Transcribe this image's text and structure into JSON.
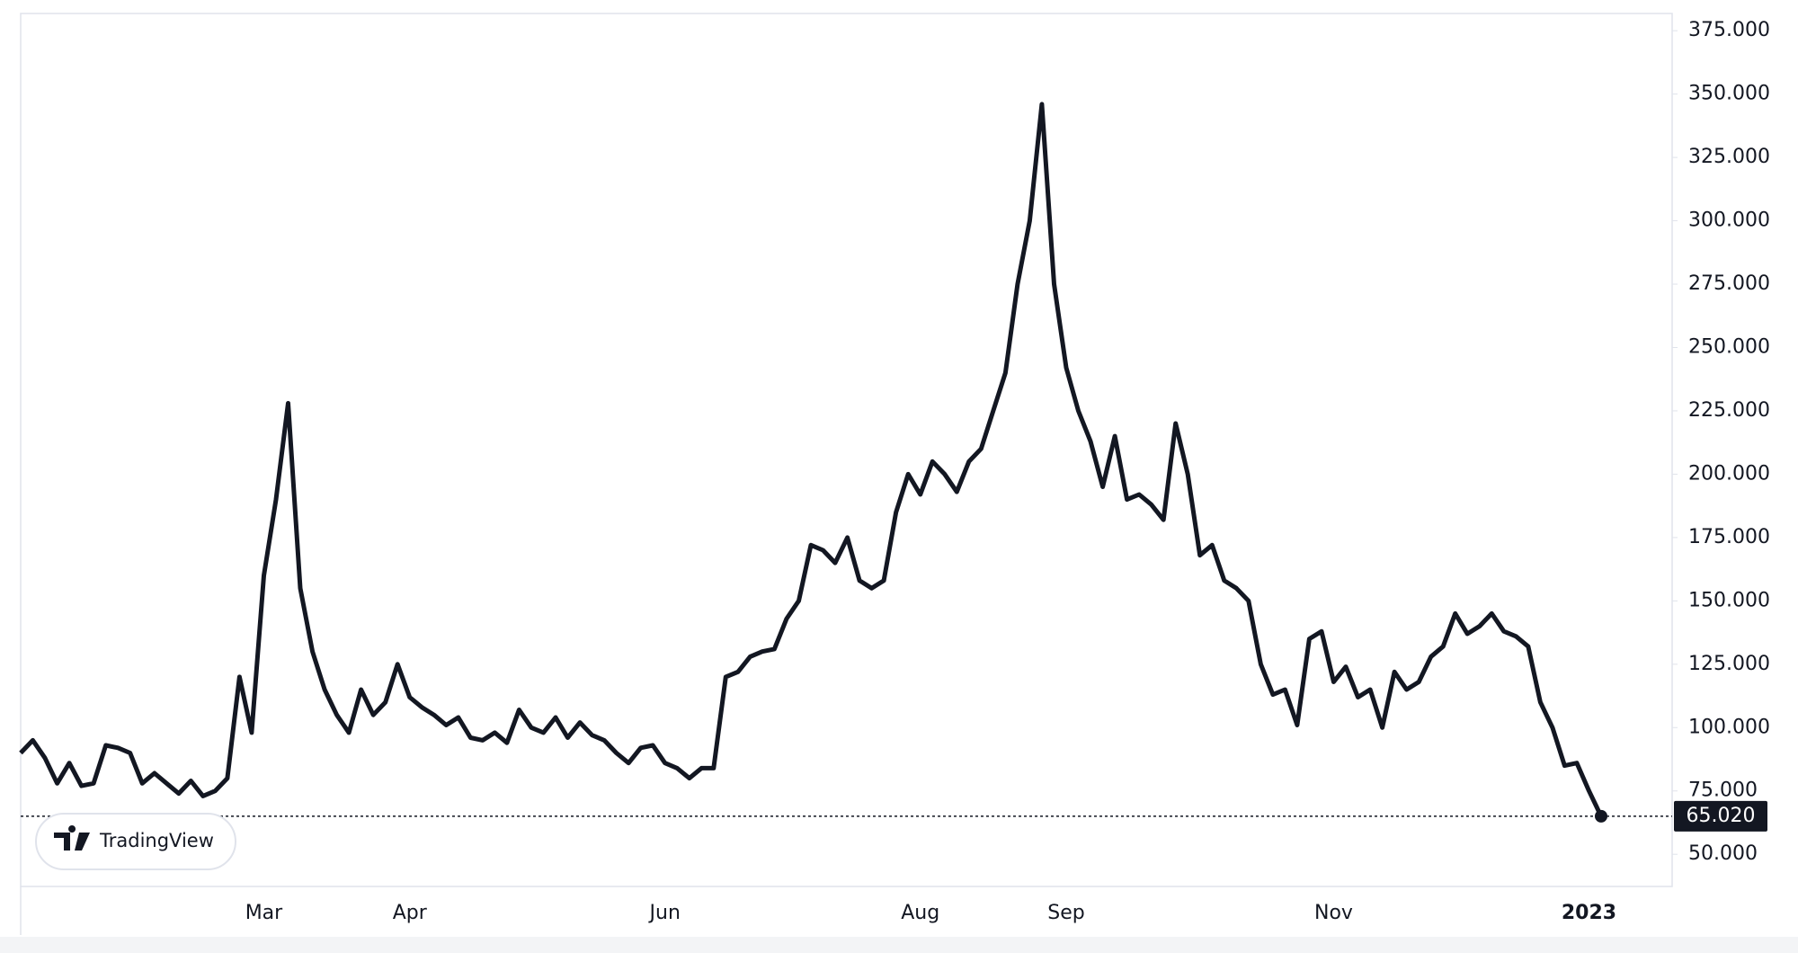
{
  "chart_data": {
    "type": "line",
    "categories": [
      null,
      null,
      null,
      null,
      null,
      null,
      null,
      null,
      null,
      null,
      null,
      null,
      null,
      null,
      null,
      null,
      null,
      null,
      null,
      null,
      "Mar",
      null,
      null,
      null,
      null,
      null,
      null,
      null,
      null,
      null,
      null,
      null,
      "Apr",
      null,
      null,
      null,
      null,
      null,
      null,
      null,
      null,
      null,
      null,
      null,
      null,
      null,
      null,
      null,
      null,
      null,
      null,
      null,
      null,
      "Jun",
      null,
      null,
      null,
      null,
      null,
      null,
      null,
      null,
      null,
      null,
      null,
      null,
      null,
      null,
      null,
      null,
      null,
      null,
      null,
      null,
      "Aug",
      null,
      null,
      null,
      null,
      null,
      null,
      null,
      null,
      null,
      null,
      null,
      "Sep",
      null,
      null,
      null,
      null,
      null,
      null,
      null,
      null,
      null,
      null,
      null,
      null,
      null,
      null,
      null,
      null,
      null,
      null,
      null,
      null,
      null,
      "Nov",
      null,
      null,
      null,
      null,
      null,
      null,
      null,
      null,
      null,
      null,
      null,
      null,
      null,
      null,
      null,
      null,
      null,
      null,
      null,
      null,
      "2023",
      null
    ],
    "series": [
      {
        "color": "#131722",
        "values": [
          90,
          95,
          88,
          78,
          86,
          77,
          78,
          93,
          92,
          90,
          78,
          82,
          78,
          74,
          79,
          73,
          75,
          80,
          120,
          98,
          160,
          190,
          228,
          155,
          130,
          115,
          105,
          98,
          115,
          105,
          110,
          125,
          112,
          108,
          105,
          101,
          104,
          96,
          95,
          98,
          94,
          107,
          100,
          98,
          104,
          96,
          102,
          97,
          95,
          90,
          86,
          92,
          93,
          86,
          84,
          80,
          84,
          84,
          120,
          122,
          128,
          130,
          131,
          143,
          150,
          172,
          170,
          165,
          175,
          158,
          155,
          158,
          185,
          200,
          192,
          205,
          200,
          193,
          205,
          210,
          225,
          240,
          275,
          300,
          346,
          275,
          242,
          225,
          213,
          195,
          215,
          190,
          192,
          188,
          182,
          220,
          200,
          168,
          172,
          158,
          155,
          150,
          125,
          113,
          115,
          101,
          135,
          138,
          118,
          124,
          112,
          115,
          100,
          122,
          115,
          118,
          128,
          132,
          145,
          137,
          140,
          145,
          138,
          136,
          132,
          110,
          100,
          85,
          86,
          75,
          65.02
        ]
      }
    ],
    "price_label": "65.020",
    "ylim": [
      37.3,
      381.8
    ],
    "yticks": [
      {
        "value": 50,
        "label": "50.000"
      },
      {
        "value": 75,
        "label": "75.000"
      },
      {
        "value": 100,
        "label": "100.000"
      },
      {
        "value": 125,
        "label": "125.000"
      },
      {
        "value": 150,
        "label": "150.000"
      },
      {
        "value": 175,
        "label": "175.000"
      },
      {
        "value": 200,
        "label": "200.000"
      },
      {
        "value": 225,
        "label": "225.000"
      },
      {
        "value": 250,
        "label": "250.000"
      },
      {
        "value": 275,
        "label": "275.000"
      },
      {
        "value": 300,
        "label": "300.000"
      },
      {
        "value": 325,
        "label": "325.000"
      },
      {
        "value": 350,
        "label": "350.000"
      },
      {
        "value": 375,
        "label": "375.000"
      }
    ],
    "watermark": "TradingView"
  }
}
